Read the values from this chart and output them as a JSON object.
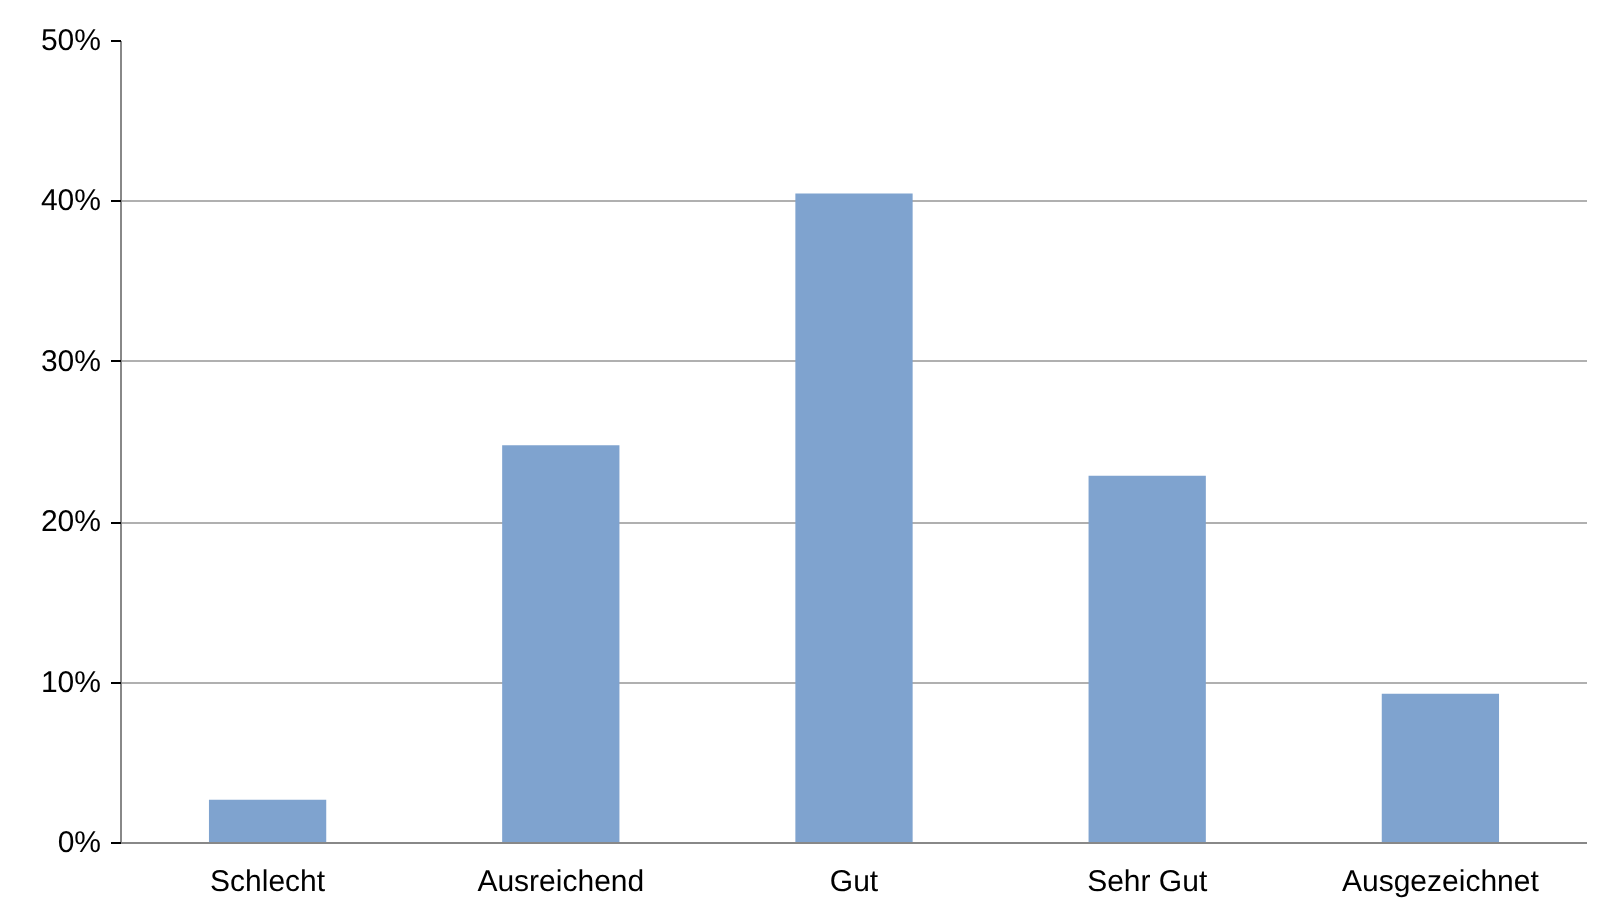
{
  "chart_data": {
    "type": "bar",
    "categories": [
      "Schlecht",
      "Ausreichend",
      "Gut",
      "Sehr Gut",
      "Ausgezeichnet"
    ],
    "values": [
      2.7,
      24.8,
      40.5,
      22.9,
      9.3
    ],
    "color": "#7fa3cf",
    "ylim": [
      0,
      50
    ],
    "yticks": [
      {
        "value": 0,
        "label": "0%"
      },
      {
        "value": 10,
        "label": "10%"
      },
      {
        "value": 20,
        "label": "20%"
      },
      {
        "value": 30,
        "label": "30%"
      },
      {
        "value": 40,
        "label": "40%"
      },
      {
        "value": 50,
        "label": "50%"
      }
    ],
    "grid": "y"
  }
}
